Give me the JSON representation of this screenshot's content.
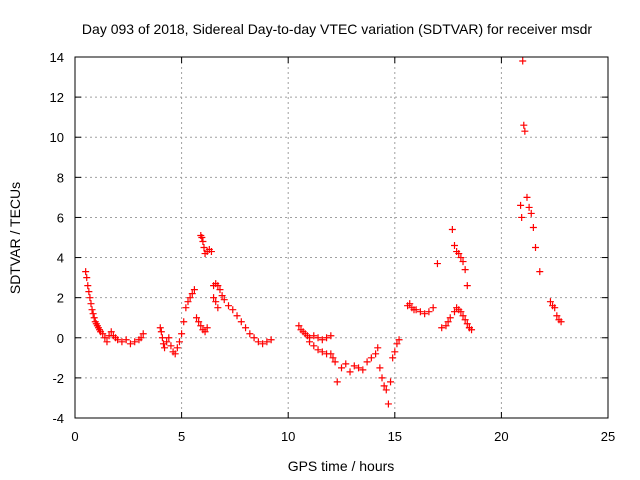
{
  "chart_data": {
    "type": "scatter",
    "title": "Day 093 of 2018, Sidereal Day-to-day VTEC variation (SDTVAR) for receiver msdr",
    "xlabel": "GPS time / hours",
    "ylabel": "SDTVAR / TECUs",
    "xlim": [
      0,
      25
    ],
    "ylim": [
      -4,
      14
    ],
    "xticks": [
      0,
      5,
      10,
      15,
      20,
      25
    ],
    "yticks": [
      -4,
      -2,
      0,
      2,
      4,
      6,
      8,
      10,
      12,
      14
    ],
    "grid": true,
    "marker": "+",
    "color": "#ff0000",
    "series": [
      {
        "name": "SDTVAR",
        "x": [
          0.5,
          0.55,
          0.6,
          0.65,
          0.7,
          0.75,
          0.8,
          0.85,
          0.9,
          0.95,
          1.0,
          1.05,
          1.1,
          1.15,
          1.2,
          1.3,
          1.4,
          1.5,
          1.6,
          1.7,
          1.8,
          1.9,
          2.0,
          2.2,
          2.4,
          2.6,
          2.8,
          3.0,
          3.1,
          3.2,
          4.0,
          4.05,
          4.1,
          4.15,
          4.2,
          4.3,
          4.4,
          4.5,
          4.6,
          4.7,
          4.8,
          4.9,
          5.0,
          5.1,
          5.2,
          5.3,
          5.4,
          5.5,
          5.6,
          5.7,
          5.8,
          5.9,
          6.0,
          6.1,
          6.2,
          5.9,
          5.95,
          6.0,
          6.05,
          6.1,
          6.2,
          6.3,
          6.4,
          6.5,
          6.6,
          6.7,
          6.5,
          6.6,
          6.7,
          6.8,
          6.9,
          7.0,
          7.2,
          7.4,
          7.6,
          7.8,
          8.0,
          8.2,
          8.4,
          8.6,
          8.8,
          9.0,
          9.2,
          10.5,
          10.6,
          10.7,
          10.8,
          10.9,
          11.0,
          11.2,
          11.4,
          11.6,
          11.8,
          12.0,
          11.0,
          11.2,
          11.4,
          11.6,
          11.8,
          12.0,
          12.1,
          12.2,
          12.3,
          12.5,
          12.7,
          12.9,
          13.1,
          13.3,
          13.5,
          13.7,
          13.9,
          14.1,
          14.2,
          14.3,
          14.4,
          14.5,
          14.6,
          14.7,
          14.8,
          14.9,
          15.0,
          15.1,
          15.2,
          15.6,
          15.7,
          15.8,
          15.9,
          16.0,
          16.2,
          16.4,
          16.6,
          16.8,
          17.0,
          17.2,
          17.4,
          17.5,
          17.6,
          17.7,
          17.8,
          17.9,
          18.0,
          18.1,
          18.2,
          18.3,
          18.4,
          18.5,
          17.8,
          17.9,
          18.0,
          18.1,
          18.2,
          18.3,
          18.4,
          18.5,
          18.6,
          20.9,
          20.95,
          21.0,
          21.05,
          21.1,
          21.2,
          21.3,
          21.4,
          21.5,
          21.6,
          21.8,
          22.3,
          22.4,
          22.5,
          22.6,
          22.7,
          22.8
        ],
        "y": [
          3.3,
          3.0,
          2.6,
          2.3,
          2.0,
          1.7,
          1.4,
          1.2,
          1.0,
          0.8,
          0.7,
          0.6,
          0.5,
          0.4,
          0.3,
          0.2,
          0.0,
          -0.2,
          0.1,
          0.3,
          0.1,
          0.0,
          -0.1,
          -0.2,
          -0.1,
          -0.3,
          -0.2,
          -0.1,
          0.0,
          0.2,
          0.5,
          0.3,
          0.0,
          -0.3,
          -0.5,
          -0.2,
          0.0,
          -0.4,
          -0.7,
          -0.8,
          -0.5,
          -0.2,
          0.2,
          0.8,
          1.5,
          1.8,
          2.0,
          2.2,
          2.4,
          1.0,
          0.8,
          0.6,
          0.4,
          0.3,
          0.5,
          5.1,
          5.0,
          4.8,
          4.5,
          4.2,
          4.3,
          4.4,
          4.3,
          2.0,
          1.8,
          1.5,
          2.6,
          2.7,
          2.6,
          2.4,
          2.1,
          1.9,
          1.6,
          1.4,
          1.1,
          0.8,
          0.5,
          0.2,
          0.0,
          -0.2,
          -0.3,
          -0.2,
          -0.1,
          0.6,
          0.4,
          0.3,
          0.2,
          0.1,
          0.0,
          0.1,
          0.0,
          -0.1,
          0.0,
          0.1,
          -0.2,
          -0.4,
          -0.6,
          -0.7,
          -0.8,
          -0.8,
          -1.0,
          -1.2,
          -2.2,
          -1.5,
          -1.3,
          -1.7,
          -1.4,
          -1.5,
          -1.6,
          -1.2,
          -1.0,
          -0.8,
          -0.5,
          -1.5,
          -2.0,
          -2.4,
          -2.6,
          -3.3,
          -2.2,
          -1.0,
          -0.7,
          -0.3,
          -0.1,
          1.6,
          1.7,
          1.5,
          1.4,
          1.4,
          1.3,
          1.2,
          1.3,
          1.5,
          3.7,
          0.5,
          0.6,
          0.8,
          1.0,
          5.4,
          4.6,
          4.3,
          4.2,
          4.0,
          3.8,
          3.4,
          2.6,
          0.5,
          1.3,
          1.5,
          1.4,
          1.3,
          1.1,
          0.9,
          0.7,
          0.5,
          0.4,
          6.6,
          6.0,
          13.8,
          10.6,
          10.3,
          7.0,
          6.5,
          6.2,
          5.5,
          4.5,
          3.3,
          1.8,
          1.6,
          1.5,
          1.1,
          0.9,
          0.8
        ]
      }
    ]
  }
}
